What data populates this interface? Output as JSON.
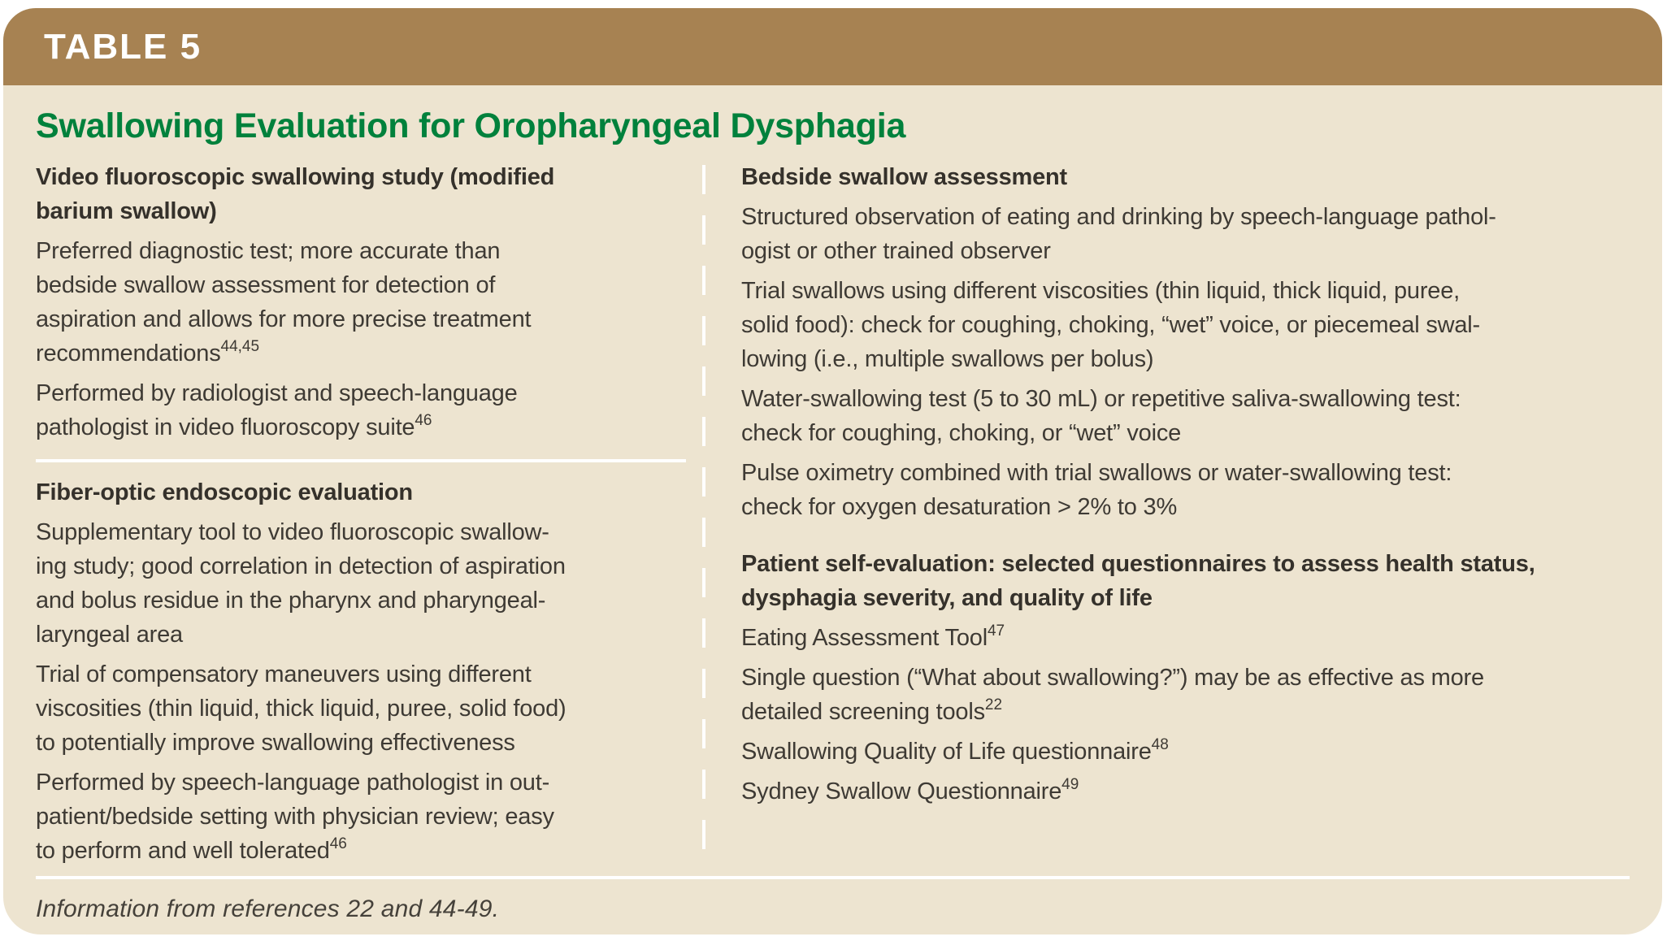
{
  "table": {
    "tag": "TABLE 5",
    "title": "Swallowing Evaluation for Oropharyngeal Dysphagia",
    "footer": "Information from references 22 and 44-49.",
    "colors": {
      "header_brown": "#a78252",
      "panel_beige": "#ede4d0",
      "title_green": "#00813c",
      "body_text": "#3e3a34",
      "divider_white": "#ffffff"
    },
    "left_column": {
      "blocks": [
        {
          "style": "heading",
          "runs": [
            {
              "t": "Video fluoroscopic swallowing study (modified\nbarium swallow)"
            }
          ]
        },
        {
          "style": "para",
          "runs": [
            {
              "t": "Preferred diagnostic test; more accurate than\nbedside swallow assessment for detection of\naspiration and allows for more precise treatment\nrecommendations"
            },
            {
              "t": "44,45",
              "sup": true
            }
          ]
        },
        {
          "style": "para",
          "runs": [
            {
              "t": "Performed by radiologist and speech-language\npathologist in video fluoroscopy suite"
            },
            {
              "t": "46",
              "sup": true
            }
          ]
        },
        {
          "style": "divider"
        },
        {
          "style": "heading",
          "runs": [
            {
              "t": "Fiber-optic endoscopic evaluation"
            }
          ]
        },
        {
          "style": "para",
          "runs": [
            {
              "t": "Supplementary tool to video fluoroscopic swallow-\ning study; good correlation in detection of aspiration\nand bolus residue in the pharynx and pharyngeal-\nlaryngeal area"
            }
          ]
        },
        {
          "style": "para",
          "runs": [
            {
              "t": "Trial of compensatory maneuvers using different\nviscosities (thin liquid, thick liquid, puree, solid food)\nto potentially improve swallowing effectiveness"
            }
          ]
        },
        {
          "style": "para",
          "runs": [
            {
              "t": "Performed by speech-language pathologist in out-\npatient/bedside setting with physician review; easy\nto perform and well tolerated"
            },
            {
              "t": "46",
              "sup": true
            }
          ]
        }
      ]
    },
    "right_column": {
      "blocks": [
        {
          "style": "heading",
          "runs": [
            {
              "t": "Bedside swallow assessment"
            }
          ]
        },
        {
          "style": "para",
          "runs": [
            {
              "t": "Structured observation of eating and drinking by speech-language pathol-\nogist or other trained observer"
            }
          ]
        },
        {
          "style": "para",
          "runs": [
            {
              "t": "Trial swallows using different viscosities (thin liquid, thick liquid, puree,\nsolid food): check for coughing, choking, “wet” voice, or piecemeal swal-\nlowing (i.e., multiple swallows per bolus)"
            }
          ]
        },
        {
          "style": "para",
          "runs": [
            {
              "t": "Water-swallowing test (5 to 30 mL) or repetitive saliva-swallowing test:\ncheck for coughing, choking, or “wet” voice"
            }
          ]
        },
        {
          "style": "para",
          "runs": [
            {
              "t": "Pulse oximetry combined with trial swallows or water-swallowing test:\ncheck for oxygen desaturation > 2% to 3%"
            }
          ]
        },
        {
          "style": "heading",
          "runs": [
            {
              "t": "Patient self-evaluation: selected questionnaires to assess health status,\ndysphagia severity, and quality of life"
            }
          ]
        },
        {
          "style": "para",
          "runs": [
            {
              "t": "Eating Assessment Tool"
            },
            {
              "t": "47",
              "sup": true
            }
          ]
        },
        {
          "style": "para",
          "runs": [
            {
              "t": "Single question (“What about swallowing?”) may be as effective as more\ndetailed screening tools"
            },
            {
              "t": "22",
              "sup": true
            }
          ]
        },
        {
          "style": "para",
          "runs": [
            {
              "t": "Swallowing Quality of Life questionnaire"
            },
            {
              "t": "48",
              "sup": true
            }
          ]
        },
        {
          "style": "para",
          "runs": [
            {
              "t": "Sydney Swallow Questionnaire"
            },
            {
              "t": "49",
              "sup": true
            }
          ]
        }
      ]
    }
  }
}
